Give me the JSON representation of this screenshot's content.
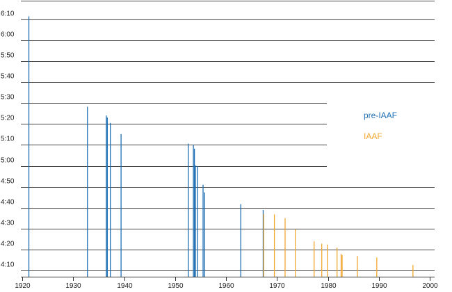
{
  "chart_data": {
    "type": "bar",
    "title": "",
    "xlabel": "",
    "ylabel": "",
    "xlim": [
      1920,
      2000
    ],
    "ylim_seconds": [
      245,
      372
    ],
    "x_ticks": [
      "1920",
      "1930",
      "1940",
      "1950",
      "1960",
      "1970",
      "1980",
      "1990",
      "2000"
    ],
    "y_ticks": [
      {
        "seconds": 250,
        "label": "4:10"
      },
      {
        "seconds": 260,
        "label": "4:20"
      },
      {
        "seconds": 270,
        "label": "4:30"
      },
      {
        "seconds": 280,
        "label": "4:40"
      },
      {
        "seconds": 290,
        "label": "4:50"
      },
      {
        "seconds": 300,
        "label": "5:00"
      },
      {
        "seconds": 310,
        "label": "5:10"
      },
      {
        "seconds": 320,
        "label": "5:20"
      },
      {
        "seconds": 330,
        "label": "5:30"
      },
      {
        "seconds": 340,
        "label": "5:40"
      },
      {
        "seconds": 350,
        "label": "5:50"
      },
      {
        "seconds": 360,
        "label": "6:00"
      },
      {
        "seconds": 370,
        "label": "6:10"
      }
    ],
    "legend_position": "right",
    "series": [
      {
        "name": "pre-IAAF",
        "color": "#1f6fb4",
        "points": [
          {
            "year": 1921.3,
            "seconds": 371.5
          },
          {
            "year": 1932.8,
            "seconds": 328.3
          },
          {
            "year": 1936.5,
            "seconds": 324.1
          },
          {
            "year": 1936.7,
            "seconds": 323.1
          },
          {
            "year": 1937.3,
            "seconds": 320.5
          },
          {
            "year": 1939.4,
            "seconds": 315.2
          },
          {
            "year": 1952.6,
            "seconds": 310.6
          },
          {
            "year": 1953.6,
            "seconds": 310.0
          },
          {
            "year": 1953.8,
            "seconds": 308.2
          },
          {
            "year": 1954.0,
            "seconds": 300.2
          },
          {
            "year": 1954.4,
            "seconds": 299.9
          },
          {
            "year": 1955.5,
            "seconds": 291.0
          },
          {
            "year": 1955.8,
            "seconds": 287.3
          },
          {
            "year": 1962.9,
            "seconds": 281.7
          },
          {
            "year": 1967.3,
            "seconds": 278.9
          }
        ]
      },
      {
        "name": "IAAF",
        "color": "#f0a830",
        "points": [
          {
            "year": 1967.4,
            "seconds": 277.0
          },
          {
            "year": 1969.5,
            "seconds": 276.8
          },
          {
            "year": 1971.6,
            "seconds": 275.0
          },
          {
            "year": 1973.6,
            "seconds": 269.7
          },
          {
            "year": 1977.3,
            "seconds": 263.9
          },
          {
            "year": 1978.8,
            "seconds": 262.8
          },
          {
            "year": 1979.9,
            "seconds": 262.4
          },
          {
            "year": 1981.8,
            "seconds": 260.9
          },
          {
            "year": 1982.6,
            "seconds": 257.9
          },
          {
            "year": 1982.8,
            "seconds": 257.3
          },
          {
            "year": 1985.8,
            "seconds": 256.9
          },
          {
            "year": 1989.6,
            "seconds": 256.2
          },
          {
            "year": 1996.7,
            "seconds": 252.6
          }
        ]
      }
    ]
  }
}
